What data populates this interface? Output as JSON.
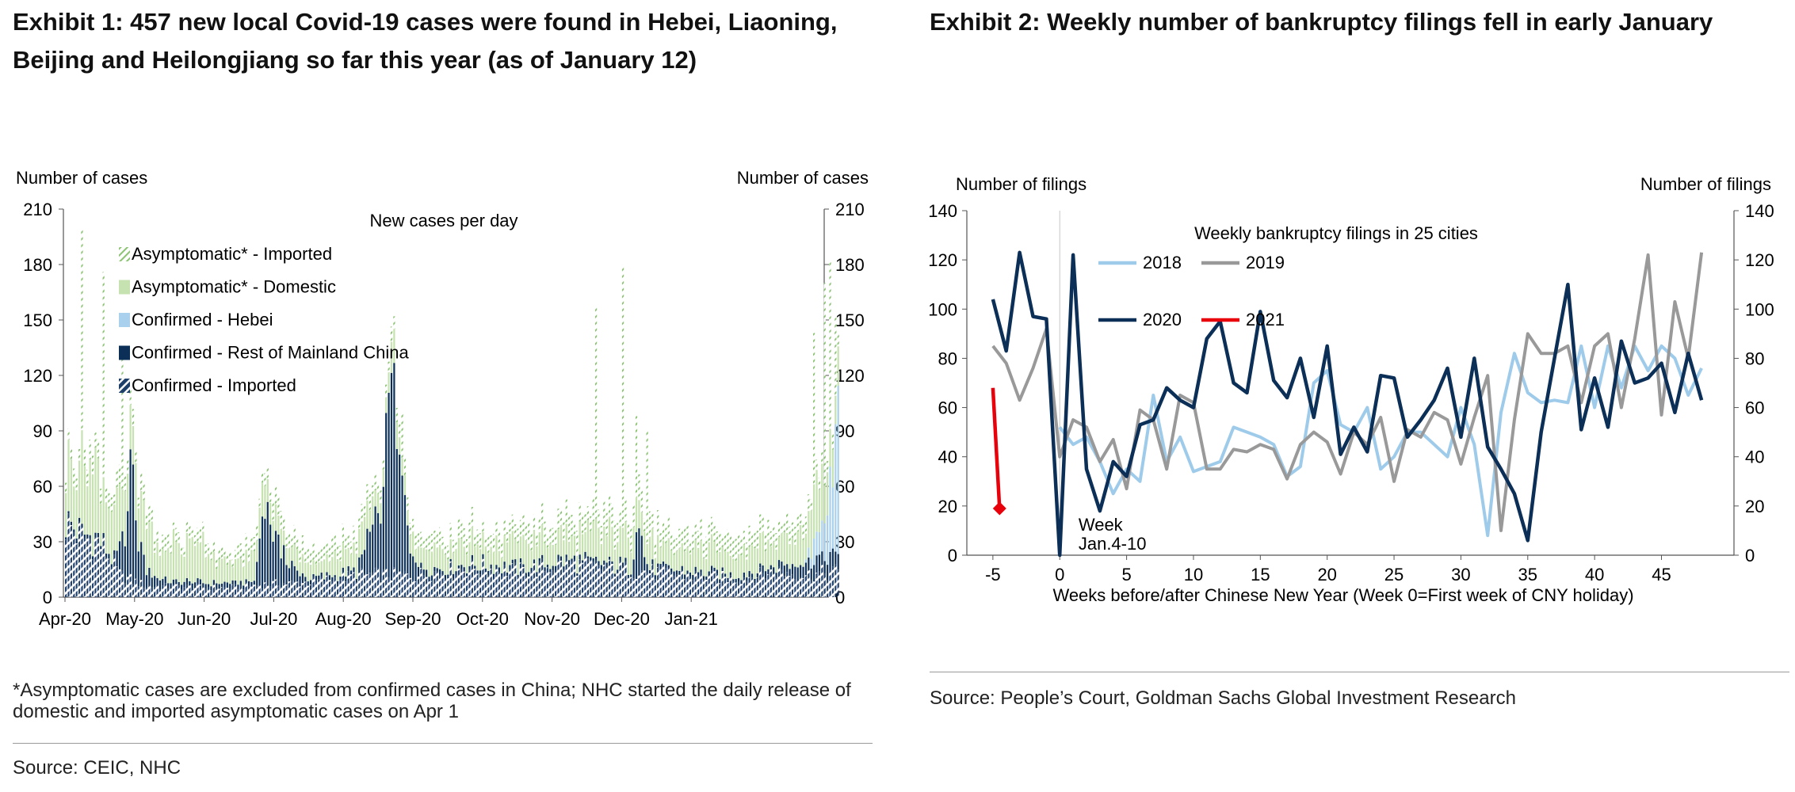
{
  "exhibit1": {
    "title": "Exhibit 1: 457 new local Covid-19 cases were found in Hebei, Liaoning, Beijing and Heilongjiang so far this year (as of January 12)",
    "footnote": "*Asymptomatic cases are excluded from confirmed cases in China; NHC started the daily release of domestic and imported asymptomatic cases on Apr 1",
    "source": "Source: CEIC, NHC"
  },
  "exhibit2": {
    "title": "Exhibit 2: Weekly number of bankruptcy filings fell in early January",
    "source": "Source: People’s Court, Goldman Sachs Global Investment Research",
    "annotation": [
      "Week",
      "Jan.4-10"
    ]
  },
  "chart_data": [
    {
      "type": "bar",
      "stacked": true,
      "title": "New cases per day",
      "ylabel_left": "Number of cases",
      "ylabel_right": "Number of cases",
      "ylim": [
        0,
        210
      ],
      "yticks": [
        0,
        30,
        60,
        90,
        120,
        150,
        180,
        210
      ],
      "x_labels": [
        "Apr-20",
        "May-20",
        "Jun-20",
        "Jul-20",
        "Aug-20",
        "Sep-20",
        "Oct-20",
        "Nov-20",
        "Dec-20",
        "Jan-21"
      ],
      "legend": [
        {
          "name": "Asymptomatic* - Imported",
          "color": "#a6d495",
          "pattern": "hatch-light"
        },
        {
          "name": "Asymptomatic* - Domestic",
          "color": "#c6e2b0",
          "pattern": "solid"
        },
        {
          "name": "Confirmed - Hebei",
          "color": "#a9d0ec",
          "pattern": "solid"
        },
        {
          "name": "Confirmed - Rest of Mainland China",
          "color": "#0b2f57",
          "pattern": "solid"
        },
        {
          "name": "Confirmed - Imported",
          "color": "#1f3f6b",
          "pattern": "hatch-dark"
        }
      ],
      "series_order": [
        "imported_confirmed",
        "rest_confirmed",
        "hebei",
        "asym_domestic",
        "asym_imported"
      ],
      "days": 288,
      "daily_keypoints": {
        "imported_confirmed": [
          [
            0,
            40
          ],
          [
            6,
            32
          ],
          [
            12,
            30
          ],
          [
            16,
            22
          ],
          [
            20,
            12
          ],
          [
            30,
            6
          ],
          [
            60,
            5
          ],
          [
            75,
            7
          ],
          [
            90,
            8
          ],
          [
            110,
            12
          ],
          [
            130,
            12
          ],
          [
            150,
            16
          ],
          [
            170,
            14
          ],
          [
            185,
            18
          ],
          [
            200,
            16
          ],
          [
            215,
            14
          ],
          [
            230,
            12
          ],
          [
            250,
            10
          ],
          [
            265,
            14
          ],
          [
            275,
            12
          ],
          [
            287,
            14
          ]
        ],
        "rest_confirmed": [
          [
            0,
            2
          ],
          [
            18,
            2
          ],
          [
            22,
            28
          ],
          [
            24,
            72
          ],
          [
            26,
            30
          ],
          [
            30,
            10
          ],
          [
            36,
            3
          ],
          [
            70,
            2
          ],
          [
            74,
            40
          ],
          [
            76,
            30
          ],
          [
            79,
            22
          ],
          [
            84,
            8
          ],
          [
            90,
            2
          ],
          [
            108,
            2
          ],
          [
            112,
            20
          ],
          [
            118,
            50
          ],
          [
            121,
            110
          ],
          [
            124,
            60
          ],
          [
            128,
            18
          ],
          [
            132,
            4
          ],
          [
            140,
            2
          ],
          [
            200,
            2
          ],
          [
            210,
            2
          ],
          [
            212,
            24
          ],
          [
            214,
            14
          ],
          [
            217,
            2
          ],
          [
            250,
            2
          ],
          [
            265,
            4
          ],
          [
            275,
            6
          ],
          [
            280,
            8
          ],
          [
            287,
            10
          ]
        ],
        "hebei": [
          [
            0,
            0
          ],
          [
            274,
            0
          ],
          [
            276,
            4
          ],
          [
            278,
            12
          ],
          [
            280,
            16
          ],
          [
            283,
            30
          ],
          [
            285,
            40
          ],
          [
            287,
            90
          ]
        ],
        "asym_domestic": [
          [
            0,
            30
          ],
          [
            4,
            36
          ],
          [
            8,
            40
          ],
          [
            10,
            42
          ],
          [
            14,
            32
          ],
          [
            18,
            28
          ],
          [
            24,
            20
          ],
          [
            30,
            30
          ],
          [
            35,
            12
          ],
          [
            40,
            22
          ],
          [
            44,
            18
          ],
          [
            50,
            26
          ],
          [
            56,
            12
          ],
          [
            60,
            10
          ],
          [
            66,
            12
          ],
          [
            72,
            16
          ],
          [
            78,
            14
          ],
          [
            84,
            10
          ],
          [
            90,
            8
          ],
          [
            98,
            10
          ],
          [
            104,
            12
          ],
          [
            110,
            14
          ],
          [
            118,
            10
          ],
          [
            122,
            14
          ],
          [
            130,
            10
          ],
          [
            140,
            12
          ],
          [
            150,
            12
          ],
          [
            160,
            12
          ],
          [
            170,
            14
          ],
          [
            180,
            12
          ],
          [
            190,
            14
          ],
          [
            200,
            16
          ],
          [
            210,
            18
          ],
          [
            214,
            16
          ],
          [
            220,
            12
          ],
          [
            230,
            10
          ],
          [
            240,
            14
          ],
          [
            250,
            12
          ],
          [
            260,
            14
          ],
          [
            270,
            16
          ],
          [
            276,
            20
          ],
          [
            280,
            30
          ],
          [
            284,
            20
          ],
          [
            287,
            16
          ]
        ],
        "asym_imported": [
          [
            0,
            8
          ],
          [
            20,
            8
          ],
          [
            40,
            6
          ],
          [
            60,
            6
          ],
          [
            80,
            8
          ],
          [
            120,
            8
          ],
          [
            140,
            8
          ],
          [
            160,
            8
          ],
          [
            180,
            10
          ],
          [
            200,
            12
          ],
          [
            220,
            10
          ],
          [
            240,
            10
          ],
          [
            260,
            8
          ],
          [
            287,
            8
          ]
        ]
      },
      "spikes": [
        {
          "day": 6,
          "total": 199
        },
        {
          "day": 14,
          "total": 176
        },
        {
          "day": 21,
          "total": 134
        },
        {
          "day": 24,
          "total": 110
        },
        {
          "day": 121,
          "total": 137
        },
        {
          "day": 125,
          "total": 100
        },
        {
          "day": 197,
          "total": 157
        },
        {
          "day": 207,
          "total": 180
        },
        {
          "day": 212,
          "total": 98
        },
        {
          "day": 216,
          "total": 90
        },
        {
          "day": 278,
          "total": 143
        },
        {
          "day": 282,
          "total": 170
        },
        {
          "day": 284,
          "total": 182
        },
        {
          "day": 286,
          "total": 152
        }
      ]
    },
    {
      "type": "line",
      "title": "Weekly bankruptcy filings in 25 cities",
      "xlabel": "Weeks before/after Chinese New Year (Week 0=First week of CNY holiday)",
      "ylabel_left": "Number of filings",
      "ylabel_right": "Number of filings",
      "xlim": [
        -6,
        49
      ],
      "xticks": [
        -5,
        0,
        5,
        10,
        15,
        20,
        25,
        30,
        35,
        40,
        45
      ],
      "ylim": [
        0,
        140
      ],
      "yticks": [
        0,
        20,
        40,
        60,
        80,
        100,
        120,
        140
      ],
      "series": [
        {
          "name": "2018",
          "color": "#9fcbeb",
          "width": 4,
          "x": [
            0,
            1,
            2,
            3,
            4,
            5,
            6,
            7,
            8,
            9,
            10,
            11,
            12,
            13,
            14,
            15,
            16,
            17,
            18,
            19,
            20,
            21,
            22,
            23,
            24,
            25,
            26,
            27,
            28,
            29,
            30,
            31,
            32,
            33,
            34,
            35,
            36,
            37,
            38,
            39,
            40,
            41,
            42,
            43,
            44,
            45,
            46,
            47,
            48
          ],
          "y": [
            52,
            45,
            48,
            38,
            25,
            35,
            30,
            65,
            38,
            48,
            34,
            36,
            38,
            52,
            50,
            48,
            45,
            32,
            36,
            70,
            75,
            53,
            50,
            60,
            35,
            40,
            50,
            50,
            45,
            40,
            60,
            45,
            8,
            58,
            82,
            66,
            62,
            63,
            62,
            85,
            60,
            85,
            68,
            85,
            75,
            85,
            80,
            65,
            76
          ]
        },
        {
          "name": "2019",
          "color": "#999999",
          "width": 4,
          "x": [
            -5,
            -4,
            -3,
            -2,
            -1,
            0,
            1,
            2,
            3,
            4,
            5,
            6,
            7,
            8,
            9,
            10,
            11,
            12,
            13,
            14,
            15,
            16,
            17,
            18,
            19,
            20,
            21,
            22,
            23,
            24,
            25,
            26,
            27,
            28,
            29,
            30,
            31,
            32,
            33,
            34,
            35,
            36,
            37,
            38,
            39,
            40,
            41,
            42,
            43,
            44,
            45,
            46,
            47,
            48
          ],
          "y": [
            85,
            78,
            63,
            76,
            92,
            40,
            55,
            52,
            38,
            47,
            27,
            59,
            55,
            35,
            65,
            62,
            35,
            35,
            43,
            42,
            45,
            43,
            31,
            45,
            50,
            46,
            33,
            50,
            45,
            56,
            30,
            51,
            48,
            58,
            55,
            37,
            56,
            73,
            10,
            55,
            90,
            82,
            82,
            85,
            62,
            85,
            90,
            60,
            88,
            122,
            57,
            103,
            80,
            123
          ]
        },
        {
          "name": "2020",
          "color": "#0b2f57",
          "width": 4.5,
          "x": [
            -5,
            -4,
            -3,
            -2,
            -1,
            0,
            1,
            2,
            3,
            4,
            5,
            6,
            7,
            8,
            9,
            10,
            11,
            12,
            13,
            14,
            15,
            16,
            17,
            18,
            19,
            20,
            21,
            22,
            23,
            24,
            25,
            26,
            27,
            28,
            29,
            30,
            31,
            32,
            33,
            34,
            35,
            36,
            37,
            38,
            39,
            40,
            41,
            42,
            43,
            44,
            45,
            46,
            47,
            48
          ],
          "y": [
            104,
            83,
            123,
            97,
            96,
            0,
            122,
            35,
            18,
            38,
            32,
            53,
            55,
            68,
            63,
            60,
            88,
            95,
            70,
            66,
            99,
            71,
            64,
            80,
            56,
            85,
            41,
            52,
            42,
            73,
            72,
            48,
            55,
            63,
            76,
            48,
            80,
            44,
            35,
            25,
            6,
            50,
            80,
            110,
            51,
            72,
            52,
            87,
            70,
            72,
            78,
            58,
            82,
            63
          ]
        },
        {
          "name": "2021",
          "color": "#e8000b",
          "width": 4.5,
          "x": [
            -5,
            -4.5
          ],
          "y": [
            68,
            19
          ]
        }
      ]
    }
  ]
}
